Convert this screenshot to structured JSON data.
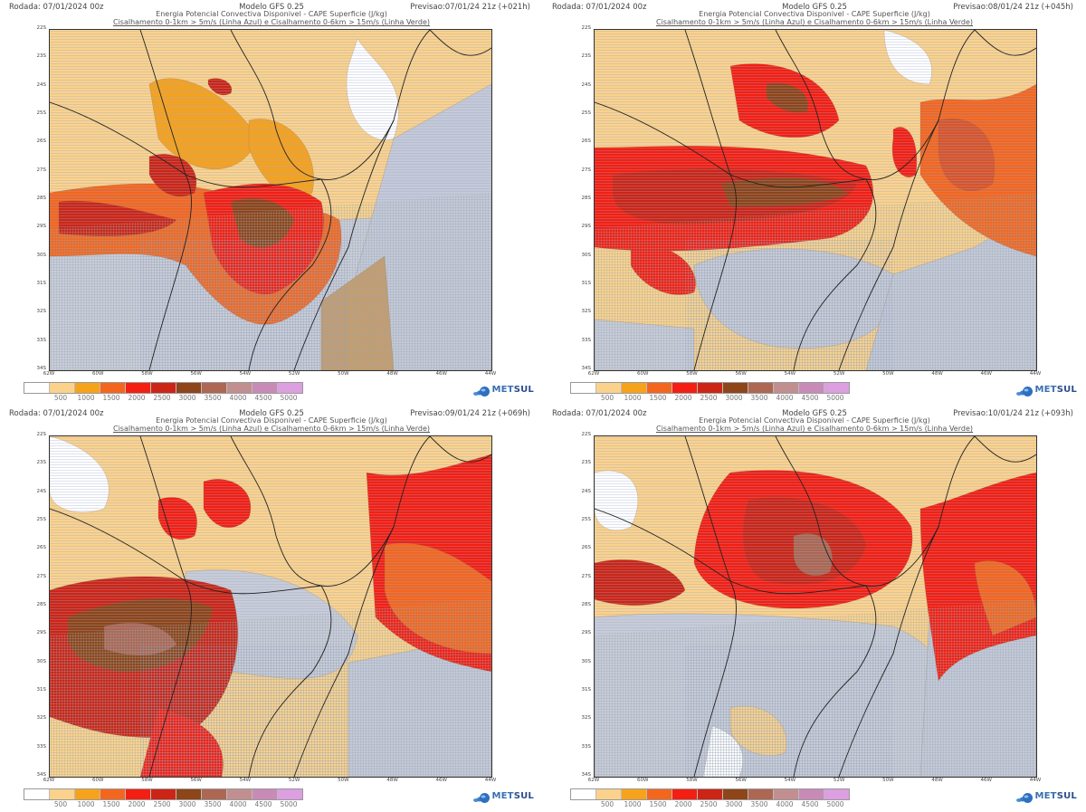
{
  "source": "MetSul",
  "panels": [
    {
      "run": "Rodada: 07/01/2024 00z",
      "model": "Modelo GFS 0.25",
      "forecast": "Previsao:07/01/24 21z (+021h)",
      "subtitle1": "Energia Potencial Convectiva Disponivel - CAPE Superficie (J/kg)",
      "subtitle2": "Cisalhamento 0-1km > 5m/s (Linha Azul) e Cisalhamento 0-6km > 15m/s (Linha Verde)"
    },
    {
      "run": "Rodada: 07/01/2024 00z",
      "model": "Modelo GFS 0.25",
      "forecast": "Previsao:08/01/24 21z (+045h)",
      "subtitle1": "Energia Potencial Convectiva Disponivel - CAPE Superficie (J/kg)",
      "subtitle2": "Cisalhamento 0-1km > 5m/s (Linha Azul) e Cisalhamento 0-6km > 15m/s (Linha Verde)"
    },
    {
      "run": "Rodada: 07/01/2024 00z",
      "model": "Modelo GFS 0.25",
      "forecast": "Previsao:09/01/24 21z (+069h)",
      "subtitle1": "Energia Potencial Convectiva Disponivel - CAPE Superficie (J/kg)",
      "subtitle2": "Cisalhamento 0-1km > 5m/s (Linha Azul) e Cisalhamento 0-6km > 15m/s (Linha Verde)"
    },
    {
      "run": "Rodada: 07/01/2024 00z",
      "model": "Modelo GFS 0.25",
      "forecast": "Previsao:10/01/24 21z (+093h)",
      "subtitle1": "Energia Potencial Convectiva Disponivel - CAPE Superficie (J/kg)",
      "subtitle2": "Cisalhamento 0-1km > 5m/s (Linha Azul) e Cisalhamento 0-6km > 15m/s (Linha Verde)"
    }
  ],
  "axes": {
    "lat_ticks": [
      "22S",
      "23S",
      "24S",
      "25S",
      "26S",
      "27S",
      "28S",
      "29S",
      "30S",
      "31S",
      "32S",
      "33S",
      "34S"
    ],
    "lon_ticks": [
      "62W",
      "60W",
      "58W",
      "56W",
      "54W",
      "52W",
      "50W",
      "48W",
      "46W",
      "44W"
    ]
  },
  "legend": {
    "unit": "J/kg",
    "labels": [
      "500",
      "1000",
      "1500",
      "2000",
      "2500",
      "3000",
      "3500",
      "4000",
      "4500",
      "5000"
    ],
    "colors": [
      "#ffffff",
      "#fbd28c",
      "#f7a21b",
      "#f4661e",
      "#f41f12",
      "#cc2516",
      "#8e4519",
      "#ad6752",
      "#c18f8f",
      "#c88bb8",
      "#dc9fe0"
    ]
  },
  "logo": {
    "text_a": "MET",
    "text_b": "SUL"
  }
}
